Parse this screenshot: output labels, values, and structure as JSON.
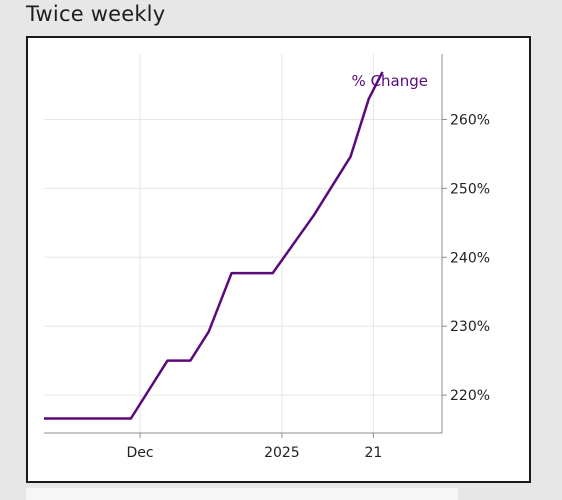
{
  "page": {
    "title": "Twice weekly"
  },
  "colors": {
    "series": "#5a0a7a",
    "grid": "#e6e6e6",
    "axis": "#8c8c8c"
  },
  "chart_data": {
    "type": "line",
    "title": "Twice weekly",
    "xlabel": "",
    "ylabel": "",
    "x_ticks": [
      {
        "label": "Dec",
        "date": "2024-12-01"
      },
      {
        "label": "2025",
        "date": "2025-01-01"
      },
      {
        "label": "21",
        "date": "2025-01-21"
      }
    ],
    "y_ticks": [
      {
        "value": 220,
        "label": "220%"
      },
      {
        "value": 230,
        "label": "230%"
      },
      {
        "value": 240,
        "label": "240%"
      },
      {
        "value": 250,
        "label": "250%"
      },
      {
        "value": 260,
        "label": "260%"
      }
    ],
    "xlim": [
      "2024-11-10",
      "2025-02-05"
    ],
    "ylim": [
      214.5,
      269.5
    ],
    "grid": true,
    "y_axis_position": "right",
    "series": [
      {
        "name": "% Change",
        "label_position": "top-right",
        "points": [
          {
            "x": "2024-11-10",
            "y": 216.6
          },
          {
            "x": "2024-11-29",
            "y": 216.6
          },
          {
            "x": "2024-12-07",
            "y": 225.0
          },
          {
            "x": "2024-12-12",
            "y": 225.0
          },
          {
            "x": "2024-12-16",
            "y": 229.2
          },
          {
            "x": "2024-12-21",
            "y": 237.7
          },
          {
            "x": "2024-12-30",
            "y": 237.7
          },
          {
            "x": "2025-01-08",
            "y": 246.1
          },
          {
            "x": "2025-01-16",
            "y": 254.6
          },
          {
            "x": "2025-01-20",
            "y": 263.0
          },
          {
            "x": "2025-01-23",
            "y": 266.9
          }
        ]
      }
    ]
  }
}
